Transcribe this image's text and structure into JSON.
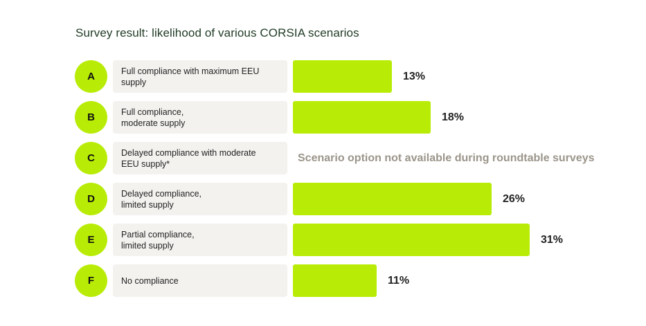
{
  "chart_data": {
    "type": "bar",
    "title": "Survey result: likelihood of various CORSIA scenarios",
    "unit": "%",
    "xlim": [
      0,
      31
    ],
    "categories": [
      {
        "letter": "A",
        "label": "Full compliance with maximum EEU\nsupply",
        "value": 13,
        "value_label": "13%"
      },
      {
        "letter": "B",
        "label": "Full compliance,\nmoderate supply",
        "value": 18,
        "value_label": "18%"
      },
      {
        "letter": "C",
        "label": "Delayed compliance with moderate\nEEU supply*",
        "value": null,
        "value_label": "Scenario option not available during roundtable surveys"
      },
      {
        "letter": "D",
        "label": "Delayed compliance,\nlimited supply",
        "value": 26,
        "value_label": "26%"
      },
      {
        "letter": "E",
        "label": "Partial compliance,\nlimited supply",
        "value": 31,
        "value_label": "31%"
      },
      {
        "letter": "F",
        "label": "No compliance",
        "value": 11,
        "value_label": "11%"
      }
    ],
    "colors": {
      "bar": "#b8ec06",
      "label_bg": "#f4f2ef",
      "title": "#1f3a24",
      "na_text": "#9b958a"
    }
  }
}
